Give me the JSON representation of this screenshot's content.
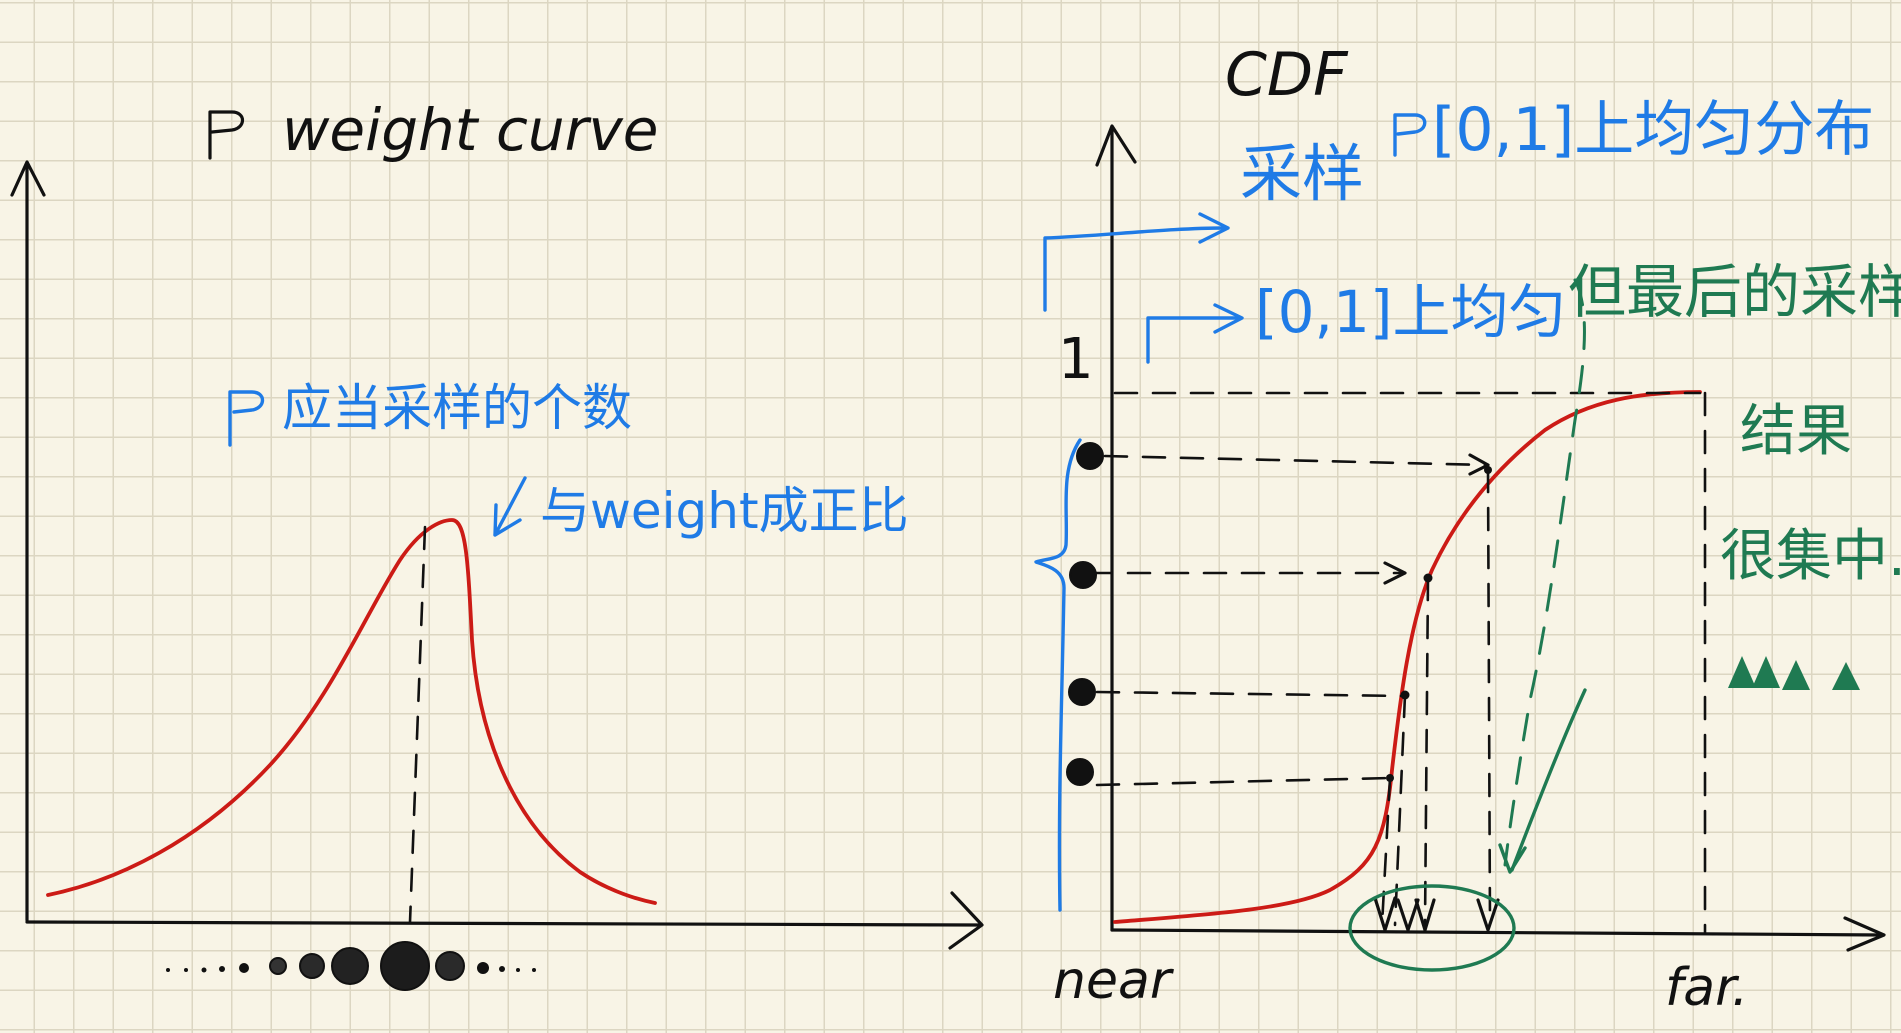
{
  "left_panel": {
    "title": "weight curve",
    "annot_count": "应当采样的个数",
    "annot_proportional": "与weight成正比"
  },
  "right_panel": {
    "cdf_label": "CDF",
    "y_one": "1",
    "sample_label": "采样",
    "uniform_label": "[0,1]上均匀分布",
    "uniform_short": "[0,1]上均匀",
    "final_samples": "但最后的采样",
    "concentrated_1": "结果",
    "concentrated_2": "很集中.",
    "near_label": "near",
    "far_label": "far."
  },
  "colors": {
    "curve": "#cc1b16",
    "annotation_blue": "#1f7be6",
    "annotation_green": "#1f7a52",
    "ink": "#111111"
  }
}
